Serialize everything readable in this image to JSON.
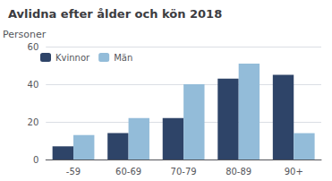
{
  "chart_data": {
    "type": "bar",
    "title": "Avlidna efter ålder och kön 2018",
    "ylabel": "Personer",
    "categories": [
      "-59",
      "60-69",
      "70-79",
      "80-89",
      "90+"
    ],
    "series": [
      {
        "name": "Kvinnor",
        "color": "#2e4468",
        "values": [
          7,
          14,
          22,
          43,
          45
        ]
      },
      {
        "name": "Män",
        "color": "#93bcd9",
        "values": [
          13,
          22,
          40,
          51,
          14
        ]
      }
    ],
    "ylim": [
      0,
      60
    ],
    "yticks": [
      0,
      20,
      40,
      60
    ],
    "grid": true,
    "legend": "upper left"
  }
}
